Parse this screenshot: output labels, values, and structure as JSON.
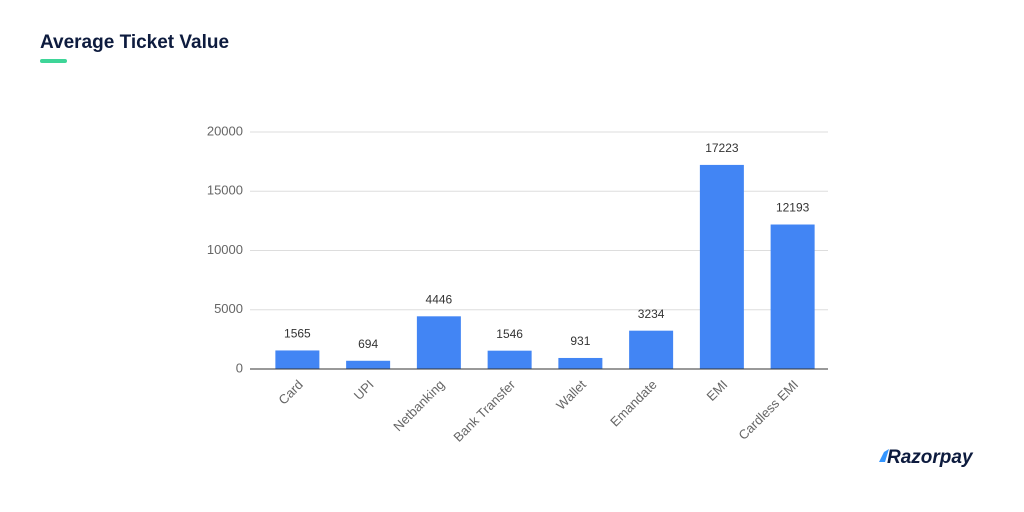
{
  "chart_data": {
    "type": "bar",
    "title": "Average Ticket Value",
    "categories": [
      "Card",
      "UPI",
      "Netbanking",
      "Bank Transfer",
      "Wallet",
      "Emandate",
      "EMI",
      "Cardless EMI"
    ],
    "values": [
      1565,
      694,
      4446,
      1546,
      931,
      3234,
      17223,
      12193
    ],
    "color": "#4285f4",
    "ylim": [
      0,
      20000
    ],
    "yticks": [
      0,
      5000,
      10000,
      15000,
      20000
    ],
    "grid": true
  },
  "brand": "Razorpay"
}
